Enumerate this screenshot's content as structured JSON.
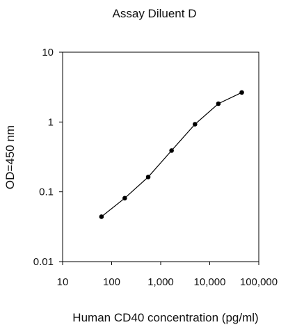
{
  "chart_data": {
    "type": "line",
    "title": "Assay Diluent D",
    "xlabel": "Human CD40 concentration (pg/ml)",
    "ylabel": "OD=450 nm",
    "x_scale": "log",
    "y_scale": "log",
    "xlim": [
      10,
      100000
    ],
    "ylim": [
      0.01,
      10
    ],
    "x_ticks": [
      {
        "value": 10,
        "label": "10"
      },
      {
        "value": 100,
        "label": "100"
      },
      {
        "value": 1000,
        "label": "1,000"
      },
      {
        "value": 10000,
        "label": "10,000"
      },
      {
        "value": 100000,
        "label": "100,000"
      }
    ],
    "y_ticks": [
      {
        "value": 10,
        "label": "10"
      },
      {
        "value": 1,
        "label": "1"
      },
      {
        "value": 0.1,
        "label": "0.1"
      },
      {
        "value": 0.01,
        "label": "0.01"
      }
    ],
    "grid": false,
    "legend": "none",
    "series": [
      {
        "color": "#000000",
        "marker": "circle",
        "x": [
          62,
          185,
          556,
          1667,
          5000,
          15000,
          45000
        ],
        "y": [
          0.044,
          0.081,
          0.163,
          0.39,
          0.93,
          1.83,
          2.65
        ]
      }
    ]
  }
}
